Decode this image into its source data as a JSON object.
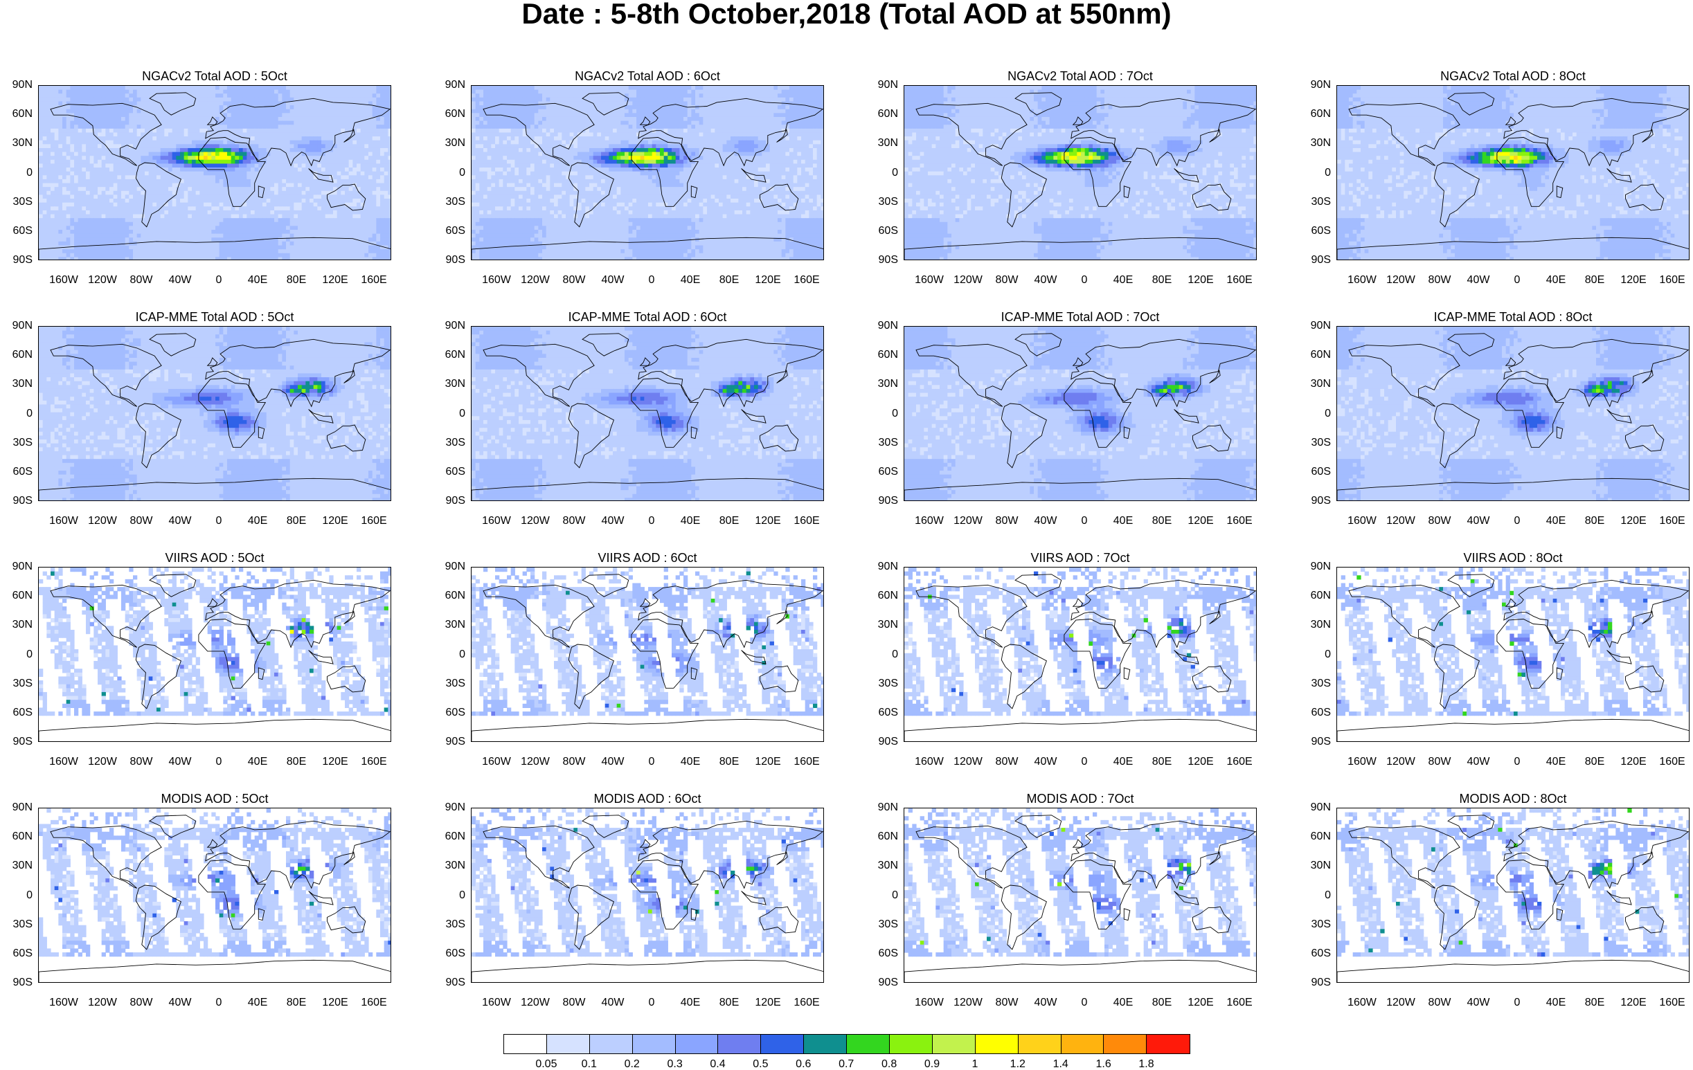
{
  "title": "Date : 5-8th October,2018 (Total AOD at 550nm)",
  "panels": [
    {
      "title": "NGACv2 Total AOD : 5Oct"
    },
    {
      "title": "NGACv2 Total AOD : 6Oct"
    },
    {
      "title": "NGACv2 Total AOD : 7Oct"
    },
    {
      "title": "NGACv2 Total AOD : 8Oct"
    },
    {
      "title": "ICAP-MME Total AOD : 5Oct"
    },
    {
      "title": "ICAP-MME Total AOD : 6Oct"
    },
    {
      "title": "ICAP-MME Total AOD : 7Oct"
    },
    {
      "title": "ICAP-MME Total AOD : 8Oct"
    },
    {
      "title": "VIIRS AOD : 5Oct"
    },
    {
      "title": "VIIRS AOD : 6Oct"
    },
    {
      "title": "VIIRS AOD : 7Oct"
    },
    {
      "title": "VIIRS AOD : 8Oct"
    },
    {
      "title": "MODIS AOD : 5Oct"
    },
    {
      "title": "MODIS AOD : 6Oct"
    },
    {
      "title": "MODIS AOD : 7Oct"
    },
    {
      "title": "MODIS AOD : 8Oct"
    }
  ],
  "lat_labels": [
    "90N",
    "60N",
    "30N",
    "0",
    "30S",
    "60S",
    "90S"
  ],
  "lon_labels": [
    "160W",
    "120W",
    "80W",
    "40W",
    "0",
    "40E",
    "80E",
    "120E",
    "160E"
  ],
  "colorbar": {
    "labels": [
      "0.05",
      "0.1",
      "0.2",
      "0.3",
      "0.4",
      "0.5",
      "0.6",
      "0.7",
      "0.8",
      "0.9",
      "1",
      "1.2",
      "1.4",
      "1.6",
      "1.8"
    ],
    "colors": [
      "#ffffff",
      "#d6e2ff",
      "#bccfff",
      "#a3bcff",
      "#8aa5ff",
      "#6f7ef0",
      "#2f62e8",
      "#0f8f8f",
      "#33d61f",
      "#8af20f",
      "#c2f24d",
      "#ffff00",
      "#ffd21a",
      "#ffb30f",
      "#ff8a0a",
      "#ff1a0a"
    ]
  }
}
